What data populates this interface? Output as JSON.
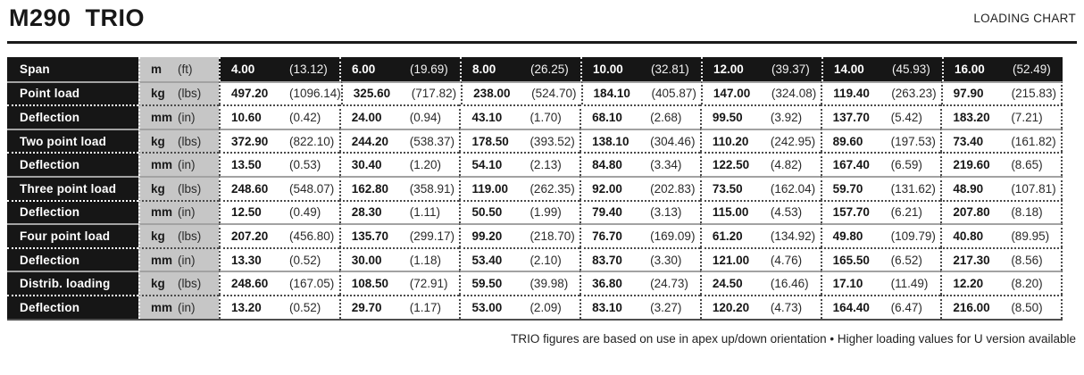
{
  "header": {
    "title": "M290  TRIO",
    "right_label": "LOADING CHART"
  },
  "colors": {
    "row_label_bg": "#161616",
    "unit_bg": "#c6c6c6",
    "rule": "#1a1a1a",
    "text": "#1c1c1c"
  },
  "table": {
    "rows": [
      {
        "label": "Span",
        "type": "header",
        "unit": "m",
        "unit_imperial": "(ft)",
        "values": [
          [
            "4.00",
            "(13.12)"
          ],
          [
            "6.00",
            "(19.69)"
          ],
          [
            "8.00",
            "(26.25)"
          ],
          [
            "10.00",
            "(32.81)"
          ],
          [
            "12.00",
            "(39.37)"
          ],
          [
            "14.00",
            "(45.93)"
          ],
          [
            "16.00",
            "(52.49)"
          ]
        ]
      },
      {
        "label": "Point load",
        "type": "load",
        "unit": "kg",
        "unit_imperial": "(lbs)",
        "values": [
          [
            "497.20",
            "(1096.14)"
          ],
          [
            "325.60",
            "(717.82)"
          ],
          [
            "238.00",
            "(524.70)"
          ],
          [
            "184.10",
            "(405.87)"
          ],
          [
            "147.00",
            "(324.08)"
          ],
          [
            "119.40",
            "(263.23)"
          ],
          [
            "97.90",
            "(215.83)"
          ]
        ]
      },
      {
        "label": "Deflection",
        "type": "deflection",
        "unit": "mm",
        "unit_imperial": "(in)",
        "values": [
          [
            "10.60",
            "(0.42)"
          ],
          [
            "24.00",
            "(0.94)"
          ],
          [
            "43.10",
            "(1.70)"
          ],
          [
            "68.10",
            "(2.68)"
          ],
          [
            "99.50",
            "(3.92)"
          ],
          [
            "137.70",
            "(5.42)"
          ],
          [
            "183.20",
            "(7.21)"
          ]
        ]
      },
      {
        "label": "Two point load",
        "type": "load",
        "unit": "kg",
        "unit_imperial": "(lbs)",
        "values": [
          [
            "372.90",
            "(822.10)"
          ],
          [
            "244.20",
            "(538.37)"
          ],
          [
            "178.50",
            "(393.52)"
          ],
          [
            "138.10",
            "(304.46)"
          ],
          [
            "110.20",
            "(242.95)"
          ],
          [
            "89.60",
            "(197.53)"
          ],
          [
            "73.40",
            "(161.82)"
          ]
        ]
      },
      {
        "label": "Deflection",
        "type": "deflection",
        "unit": "mm",
        "unit_imperial": "(in)",
        "values": [
          [
            "13.50",
            "(0.53)"
          ],
          [
            "30.40",
            "(1.20)"
          ],
          [
            "54.10",
            "(2.13)"
          ],
          [
            "84.80",
            "(3.34)"
          ],
          [
            "122.50",
            "(4.82)"
          ],
          [
            "167.40",
            "(6.59)"
          ],
          [
            "219.60",
            "(8.65)"
          ]
        ]
      },
      {
        "label": "Three point load",
        "type": "load",
        "unit": "kg",
        "unit_imperial": "(lbs)",
        "values": [
          [
            "248.60",
            "(548.07)"
          ],
          [
            "162.80",
            "(358.91)"
          ],
          [
            "119.00",
            "(262.35)"
          ],
          [
            "92.00",
            "(202.83)"
          ],
          [
            "73.50",
            "(162.04)"
          ],
          [
            "59.70",
            "(131.62)"
          ],
          [
            "48.90",
            "(107.81)"
          ]
        ]
      },
      {
        "label": "Deflection",
        "type": "deflection",
        "unit": "mm",
        "unit_imperial": "(in)",
        "values": [
          [
            "12.50",
            "(0.49)"
          ],
          [
            "28.30",
            "(1.11)"
          ],
          [
            "50.50",
            "(1.99)"
          ],
          [
            "79.40",
            "(3.13)"
          ],
          [
            "115.00",
            "(4.53)"
          ],
          [
            "157.70",
            "(6.21)"
          ],
          [
            "207.80",
            "(8.18)"
          ]
        ]
      },
      {
        "label": "Four point load",
        "type": "load",
        "unit": "kg",
        "unit_imperial": "(lbs)",
        "values": [
          [
            "207.20",
            "(456.80)"
          ],
          [
            "135.70",
            "(299.17)"
          ],
          [
            "99.20",
            "(218.70)"
          ],
          [
            "76.70",
            "(169.09)"
          ],
          [
            "61.20",
            "(134.92)"
          ],
          [
            "49.80",
            "(109.79)"
          ],
          [
            "40.80",
            "(89.95)"
          ]
        ]
      },
      {
        "label": "Deflection",
        "type": "deflection",
        "unit": "mm",
        "unit_imperial": "(in)",
        "values": [
          [
            "13.30",
            "(0.52)"
          ],
          [
            "30.00",
            "(1.18)"
          ],
          [
            "53.40",
            "(2.10)"
          ],
          [
            "83.70",
            "(3.30)"
          ],
          [
            "121.00",
            "(4.76)"
          ],
          [
            "165.50",
            "(6.52)"
          ],
          [
            "217.30",
            "(8.56)"
          ]
        ]
      },
      {
        "label": "Distrib. loading",
        "type": "load",
        "unit": "kg",
        "unit_imperial": "(lbs)",
        "values": [
          [
            "248.60",
            "(167.05)"
          ],
          [
            "108.50",
            "(72.91)"
          ],
          [
            "59.50",
            "(39.98)"
          ],
          [
            "36.80",
            "(24.73)"
          ],
          [
            "24.50",
            "(16.46)"
          ],
          [
            "17.10",
            "(11.49)"
          ],
          [
            "12.20",
            "(8.20)"
          ]
        ]
      },
      {
        "label": "Deflection",
        "type": "deflection",
        "unit": "mm",
        "unit_imperial": "(in)",
        "values": [
          [
            "13.20",
            "(0.52)"
          ],
          [
            "29.70",
            "(1.17)"
          ],
          [
            "53.00",
            "(2.09)"
          ],
          [
            "83.10",
            "(3.27)"
          ],
          [
            "120.20",
            "(4.73)"
          ],
          [
            "164.40",
            "(6.47)"
          ],
          [
            "216.00",
            "(8.50)"
          ]
        ]
      }
    ]
  },
  "footer": {
    "note": "TRIO figures are based on use in apex up/down orientation • Higher loading values for U version available"
  }
}
